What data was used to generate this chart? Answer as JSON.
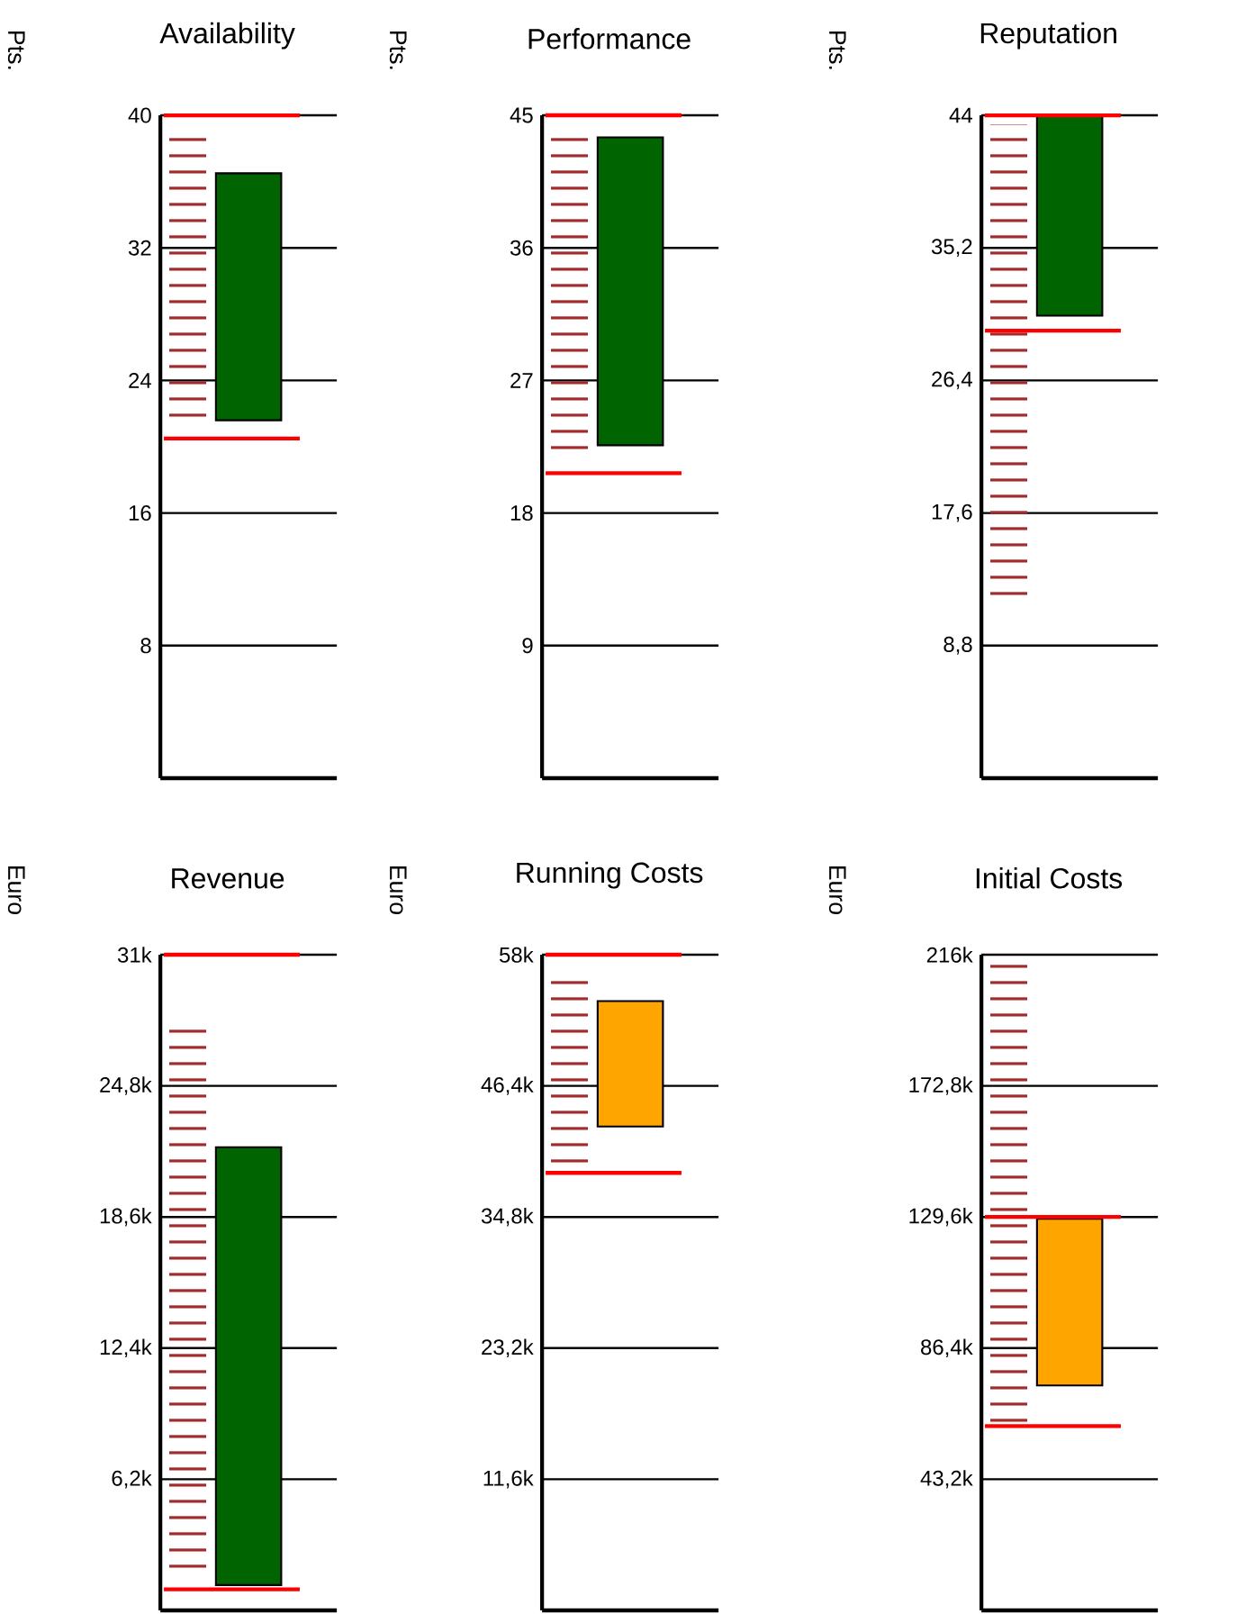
{
  "chart_data": [
    {
      "type": "bar",
      "title": "Availability",
      "ylabel": "Pts.",
      "categories": [
        null
      ],
      "base": [
        21.6
      ],
      "values": [
        14.9
      ],
      "color": "#006400",
      "ylim": [
        0,
        40
      ],
      "yticks": [
        8,
        16,
        24,
        32,
        40
      ],
      "grid": "y",
      "tick_labels": "y",
      "ref_lines": [
        {
          "axis": "y",
          "value": 40,
          "color": "#ff0000"
        },
        {
          "axis": "y",
          "value": 20.5,
          "color": "#ff0000"
        }
      ],
      "bands": [
        {
          "axis": "y",
          "from": 21.6,
          "to": 38.7,
          "color": "#a52a2a"
        }
      ]
    },
    {
      "type": "bar",
      "title": "Performance",
      "ylabel": "Pts.",
      "categories": [
        null
      ],
      "base": [
        22.6
      ],
      "values": [
        20.9
      ],
      "color": "#006400",
      "ylim": [
        0,
        45
      ],
      "yticks": [
        9,
        18,
        27,
        36,
        45
      ],
      "grid": "y",
      "tick_labels": "y",
      "ref_lines": [
        {
          "axis": "y",
          "value": 45,
          "color": "#ff0000"
        },
        {
          "axis": "y",
          "value": 20.7,
          "color": "#ff0000"
        }
      ],
      "bands": [
        {
          "axis": "y",
          "from": 21.7,
          "to": 43.7,
          "color": "#a52a2a"
        }
      ]
    },
    {
      "type": "bar",
      "title": "Reputation",
      "ylabel": "Pts.",
      "categories": [
        null
      ],
      "base": [
        30.7
      ],
      "values": [
        13.3
      ],
      "color": "#006400",
      "ylim": [
        0,
        44
      ],
      "yticks": [
        {
          "value": 8.8,
          "label": "8,8"
        },
        {
          "value": 17.6,
          "label": "17,6"
        },
        {
          "value": 26.4,
          "label": "26,4"
        },
        {
          "value": 35.2,
          "label": "35,2"
        },
        44
      ],
      "grid": "y",
      "tick_labels": "y",
      "ref_lines": [
        {
          "axis": "y",
          "value": 44,
          "color": "#ff0000"
        },
        {
          "axis": "y",
          "value": 29.7,
          "color": "#ff0000"
        }
      ],
      "bands": [
        {
          "axis": "y",
          "from": 11.8,
          "to": 43.4,
          "color": "#a52a2a"
        }
      ]
    },
    {
      "type": "bar",
      "title": "Revenue",
      "ylabel": "Euro",
      "categories": [
        null
      ],
      "base": [
        1200
      ],
      "values": [
        20700
      ],
      "color": "#006400",
      "ylim": [
        0,
        31000
      ],
      "yticks": [
        {
          "value": 6200,
          "label": "6,2k"
        },
        {
          "value": 12400,
          "label": "12,4k"
        },
        {
          "value": 18600,
          "label": "18,6k"
        },
        {
          "value": 24800,
          "label": "24,8k"
        },
        {
          "value": 31000,
          "label": "31k"
        }
      ],
      "grid": "y",
      "tick_labels": "y",
      "ref_lines": [
        {
          "axis": "y",
          "value": 31000,
          "color": "#ff0000"
        },
        {
          "axis": "y",
          "value": 1000,
          "color": "#ff0000"
        }
      ],
      "bands": [
        {
          "axis": "y",
          "from": 1500,
          "to": 27900,
          "color": "#a52a2a"
        }
      ]
    },
    {
      "type": "bar",
      "title": "Running Costs",
      "ylabel": "Euro",
      "categories": [
        null
      ],
      "base": [
        42800
      ],
      "values": [
        11100
      ],
      "color": "#ffa500",
      "ylim": [
        0,
        58000
      ],
      "yticks": [
        {
          "value": 11600,
          "label": "11,6k"
        },
        {
          "value": 23200,
          "label": "23,2k"
        },
        {
          "value": 34800,
          "label": "34,8k"
        },
        {
          "value": 46400,
          "label": "46,4k"
        },
        {
          "value": 58000,
          "label": "58k"
        }
      ],
      "grid": "y",
      "tick_labels": "y",
      "ref_lines": [
        {
          "axis": "y",
          "value": 58000,
          "color": "#ff0000"
        },
        {
          "axis": "y",
          "value": 38700,
          "color": "#ff0000"
        }
      ],
      "bands": [
        {
          "axis": "y",
          "from": 39500,
          "to": 56000,
          "color": "#a52a2a"
        }
      ]
    },
    {
      "type": "bar",
      "title": "Initial Costs",
      "ylabel": "Euro",
      "categories": [
        null
      ],
      "base": [
        74100
      ],
      "values": [
        54900
      ],
      "color": "#ffa500",
      "ylim": [
        0,
        216000
      ],
      "yticks": [
        {
          "value": 43200,
          "label": "43,2k"
        },
        {
          "value": 86400,
          "label": "86,4k"
        },
        {
          "value": 129600,
          "label": "129,6k"
        },
        {
          "value": 172800,
          "label": "172,8k"
        },
        {
          "value": 216000,
          "label": "216k"
        }
      ],
      "grid": "y",
      "tick_labels": "y",
      "ref_lines": [
        {
          "axis": "y",
          "value": 129600,
          "color": "#ff0000"
        },
        {
          "axis": "y",
          "value": 60700,
          "color": "#ff0000"
        }
      ],
      "bands": [
        {
          "axis": "y",
          "from": 62000,
          "to": 216000,
          "color": "#a52a2a"
        }
      ]
    }
  ]
}
